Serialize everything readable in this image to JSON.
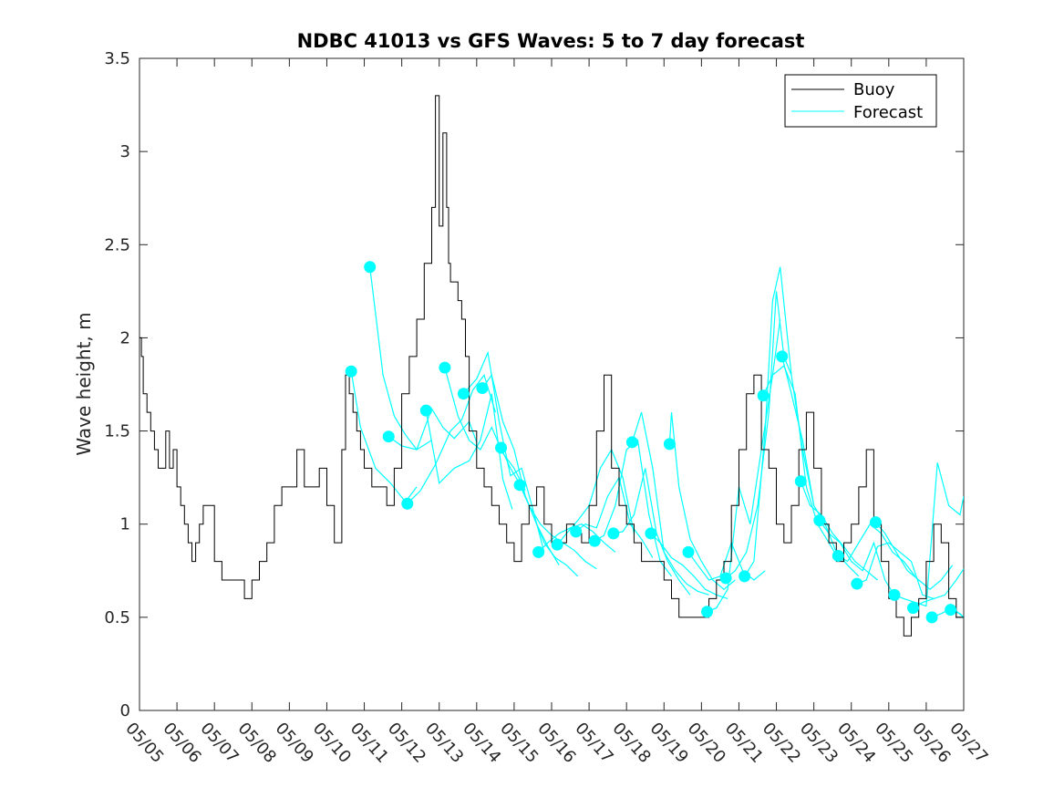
{
  "chart_data": {
    "type": "line",
    "title": "NDBC 41013 vs GFS Waves: 5 to 7 day forecast",
    "xlabel": "",
    "ylabel": "Wave height, m",
    "xlim": [
      0,
      22
    ],
    "ylim": [
      0,
      3.5
    ],
    "x_tick_values": [
      0,
      1,
      2,
      3,
      4,
      5,
      6,
      7,
      8,
      9,
      10,
      11,
      12,
      13,
      14,
      15,
      16,
      17,
      18,
      19,
      20,
      21,
      22
    ],
    "x_tick_labels": [
      "05/05",
      "05/06",
      "05/07",
      "05/08",
      "05/09",
      "05/10",
      "05/11",
      "05/12",
      "05/13",
      "05/14",
      "05/15",
      "05/16",
      "05/17",
      "05/18",
      "05/19",
      "05/20",
      "05/21",
      "05/22",
      "05/23",
      "05/24",
      "05/25",
      "05/26",
      "05/27"
    ],
    "y_tick_values": [
      0,
      0.5,
      1,
      1.5,
      2,
      2.5,
      3,
      3.5
    ],
    "y_tick_labels": [
      "0",
      "0.5",
      "1",
      "1.5",
      "2",
      "2.5",
      "3",
      "3.5"
    ],
    "grid": false,
    "legend": {
      "position": "top-right",
      "entries": [
        "Buoy",
        "Forecast"
      ]
    },
    "colors": {
      "buoy": "#000000",
      "forecast": "#00ffff"
    },
    "series": [
      {
        "name": "Buoy",
        "x": [
          0,
          0.05,
          0.1,
          0.2,
          0.3,
          0.4,
          0.5,
          0.6,
          0.7,
          0.8,
          0.9,
          1.0,
          1.1,
          1.2,
          1.3,
          1.4,
          1.5,
          1.6,
          1.7,
          1.8,
          2.0,
          2.2,
          2.4,
          2.6,
          2.8,
          3.0,
          3.2,
          3.4,
          3.6,
          3.8,
          4.0,
          4.2,
          4.4,
          4.6,
          4.8,
          5.0,
          5.2,
          5.4,
          5.5,
          5.6,
          5.7,
          5.8,
          5.9,
          6.0,
          6.2,
          6.4,
          6.6,
          6.8,
          7.0,
          7.2,
          7.4,
          7.6,
          7.8,
          7.9,
          8.0,
          8.1,
          8.2,
          8.25,
          8.3,
          8.4,
          8.5,
          8.6,
          8.7,
          8.8,
          9.0,
          9.2,
          9.4,
          9.6,
          9.8,
          10.0,
          10.2,
          10.4,
          10.6,
          10.8,
          11.0,
          11.2,
          11.4,
          11.6,
          11.8,
          12.0,
          12.2,
          12.4,
          12.6,
          12.8,
          13.0,
          13.2,
          13.4,
          13.6,
          13.8,
          14.0,
          14.2,
          14.4,
          14.6,
          14.8,
          15.0,
          15.2,
          15.4,
          15.6,
          15.8,
          16.0,
          16.2,
          16.4,
          16.6,
          16.8,
          17.0,
          17.2,
          17.4,
          17.6,
          17.8,
          18.0,
          18.2,
          18.4,
          18.6,
          18.8,
          19.0,
          19.2,
          19.4,
          19.6,
          19.8,
          20.0,
          20.2,
          20.4,
          20.6,
          20.8,
          21.0,
          21.2,
          21.4,
          21.6,
          21.8,
          22.0
        ],
        "values": [
          2.0,
          1.9,
          1.7,
          1.6,
          1.5,
          1.4,
          1.3,
          1.3,
          1.5,
          1.3,
          1.4,
          1.2,
          1.1,
          1.0,
          0.9,
          0.8,
          0.9,
          1.0,
          1.1,
          1.1,
          0.8,
          0.7,
          0.7,
          0.7,
          0.6,
          0.7,
          0.8,
          0.9,
          1.1,
          1.2,
          1.2,
          1.4,
          1.2,
          1.2,
          1.3,
          1.1,
          0.9,
          1.4,
          1.8,
          1.7,
          1.6,
          1.5,
          1.4,
          1.3,
          1.2,
          1.2,
          1.1,
          1.3,
          1.7,
          1.9,
          2.1,
          2.4,
          2.7,
          3.3,
          2.6,
          3.1,
          2.7,
          2.4,
          2.3,
          2.3,
          2.2,
          2.1,
          1.9,
          1.5,
          1.3,
          1.2,
          1.1,
          1.0,
          0.9,
          0.8,
          1.0,
          1.1,
          1.2,
          1.0,
          0.9,
          0.9,
          1.0,
          0.95,
          0.9,
          1.1,
          1.5,
          1.8,
          1.3,
          1.1,
          1.0,
          0.9,
          0.8,
          0.8,
          0.8,
          0.7,
          0.6,
          0.5,
          0.5,
          0.5,
          0.5,
          0.6,
          0.7,
          0.8,
          1.1,
          1.4,
          1.7,
          1.8,
          1.4,
          1.3,
          1.0,
          0.9,
          1.1,
          1.4,
          1.6,
          1.3,
          1.0,
          0.9,
          0.8,
          0.9,
          1.0,
          1.2,
          1.4,
          1.0,
          0.8,
          0.6,
          0.5,
          0.4,
          0.5,
          0.6,
          0.8,
          1.0,
          0.9,
          0.6,
          0.5,
          0.5
        ]
      },
      {
        "name": "Forecast",
        "runs": [
          {
            "x": [
              5.65,
              5.9,
              6.3,
              6.7,
              7.1,
              7.4
            ],
            "y": [
              1.82,
              1.52,
              1.3,
              1.22,
              1.12,
              1.2
            ]
          },
          {
            "x": [
              6.15,
              6.5,
              6.8,
              7.1,
              7.4,
              7.8
            ],
            "y": [
              2.38,
              1.8,
              1.58,
              1.48,
              1.4,
              1.45
            ]
          },
          {
            "x": [
              6.65,
              7.0,
              7.4,
              7.8,
              8.1,
              8.4,
              8.8,
              9.0
            ],
            "y": [
              1.47,
              1.42,
              1.4,
              1.62,
              1.52,
              1.46,
              1.55,
              1.44
            ]
          },
          {
            "x": [
              7.15,
              7.5,
              7.9,
              8.3,
              8.6,
              8.9,
              9.2,
              9.5
            ],
            "y": [
              1.11,
              1.18,
              1.32,
              1.5,
              1.56,
              1.72,
              1.8,
              1.6
            ]
          },
          {
            "x": [
              7.65,
              8.0,
              8.4,
              8.8,
              9.1,
              9.4,
              9.7,
              9.95
            ],
            "y": [
              1.61,
              1.22,
              1.3,
              1.34,
              1.45,
              1.7,
              1.24,
              1.08
            ]
          },
          {
            "x": [
              8.15,
              8.5,
              8.8,
              9.1,
              9.4,
              9.7,
              10.0,
              10.3
            ],
            "y": [
              1.84,
              1.58,
              1.45,
              1.4,
              1.52,
              1.38,
              1.3,
              1.18
            ]
          },
          {
            "x": [
              8.65,
              9.0,
              9.3,
              9.6,
              9.9,
              10.2,
              10.5,
              10.8
            ],
            "y": [
              1.7,
              1.78,
              1.92,
              1.55,
              1.26,
              1.3,
              1.08,
              0.85
            ]
          },
          {
            "x": [
              9.15,
              9.4,
              9.7,
              10.0,
              10.3,
              10.6,
              10.9,
              11.2
            ],
            "y": [
              1.73,
              1.8,
              1.55,
              1.4,
              1.15,
              1.0,
              0.88,
              0.78
            ]
          },
          {
            "x": [
              9.65,
              9.9,
              10.2,
              10.5,
              10.8,
              11.1,
              11.4,
              11.7
            ],
            "y": [
              1.41,
              1.3,
              1.2,
              1.05,
              0.9,
              0.82,
              0.78,
              0.72
            ]
          },
          {
            "x": [
              10.15,
              10.4,
              10.7,
              11.0,
              11.3,
              11.6,
              11.9,
              12.2
            ],
            "y": [
              1.21,
              1.1,
              1.0,
              0.94,
              0.9,
              0.86,
              0.8,
              0.76
            ]
          },
          {
            "x": [
              10.65,
              10.9,
              11.2,
              11.5,
              11.8,
              12.1,
              12.4,
              12.7
            ],
            "y": [
              0.85,
              0.9,
              0.95,
              0.98,
              1.0,
              0.96,
              0.9,
              0.85
            ]
          },
          {
            "x": [
              11.15,
              11.4,
              11.7,
              12.0,
              12.3,
              12.6,
              12.9,
              13.2
            ],
            "y": [
              0.89,
              0.95,
              1.02,
              1.1,
              1.3,
              1.4,
              1.25,
              0.95
            ]
          },
          {
            "x": [
              11.65,
              11.9,
              12.2,
              12.5,
              12.8,
              13.1,
              13.4,
              13.7
            ],
            "y": [
              0.96,
              1.0,
              0.98,
              1.15,
              1.25,
              1.0,
              0.92,
              0.82
            ]
          },
          {
            "x": [
              12.15,
              12.4,
              12.7,
              13.0,
              13.3,
              13.6,
              13.9,
              14.2
            ],
            "y": [
              0.91,
              0.94,
              1.1,
              1.4,
              1.45,
              1.05,
              0.8,
              0.72
            ]
          },
          {
            "x": [
              12.65,
              12.9,
              13.2,
              13.5,
              13.8,
              14.1,
              14.4,
              14.7
            ],
            "y": [
              0.95,
              0.96,
              1.05,
              1.3,
              0.95,
              0.8,
              0.7,
              0.62
            ]
          },
          {
            "x": [
              13.15,
              13.4,
              13.7,
              14.0,
              14.3,
              14.6,
              14.9,
              15.2
            ],
            "y": [
              1.44,
              1.6,
              1.3,
              0.85,
              0.75,
              0.68,
              0.64,
              0.62
            ]
          },
          {
            "x": [
              13.65,
              13.9,
              14.2,
              14.5,
              14.8,
              15.1,
              15.4,
              15.7
            ],
            "y": [
              0.95,
              0.9,
              0.82,
              0.78,
              0.72,
              0.65,
              0.62,
              0.6
            ]
          },
          {
            "x": [
              14.15,
              14.2,
              14.4,
              14.7,
              15.0,
              15.3,
              15.6,
              15.9
            ],
            "y": [
              1.43,
              1.6,
              1.2,
              0.92,
              0.8,
              0.7,
              0.65,
              0.7
            ]
          },
          {
            "x": [
              14.65,
              14.9,
              15.2,
              15.5,
              15.8,
              16.1,
              16.4,
              16.7
            ],
            "y": [
              0.85,
              0.78,
              0.7,
              0.72,
              0.9,
              0.75,
              0.7,
              0.75
            ]
          },
          {
            "x": [
              15.15,
              15.4,
              15.7,
              16.0,
              16.3,
              16.6,
              16.9,
              17.1
            ],
            "y": [
              0.53,
              0.55,
              0.65,
              1.2,
              1.0,
              1.4,
              1.8,
              2.1
            ]
          },
          {
            "x": [
              15.65,
              15.9,
              16.2,
              16.5,
              16.8,
              17.0,
              17.2,
              17.4
            ],
            "y": [
              0.71,
              0.75,
              0.85,
              1.1,
              1.6,
              2.25,
              1.9,
              1.8
            ]
          },
          {
            "x": [
              16.15,
              16.4,
              16.7,
              16.9,
              17.1,
              17.4,
              17.7,
              18.0
            ],
            "y": [
              0.72,
              0.8,
              1.5,
              2.2,
              2.38,
              1.8,
              1.4,
              1.1
            ]
          },
          {
            "x": [
              16.65,
              16.9,
              17.2,
              17.5,
              17.8,
              18.1,
              18.4,
              18.7
            ],
            "y": [
              1.69,
              1.8,
              1.85,
              1.7,
              1.2,
              1.0,
              0.9,
              0.8
            ]
          },
          {
            "x": [
              17.15,
              17.4,
              17.7,
              18.0,
              18.3,
              18.6,
              18.9,
              19.2
            ],
            "y": [
              1.9,
              1.7,
              1.45,
              1.1,
              1.0,
              0.85,
              0.78,
              0.72
            ]
          },
          {
            "x": [
              17.65,
              17.9,
              18.2,
              18.5,
              18.8,
              19.1,
              19.4,
              19.7
            ],
            "y": [
              1.23,
              1.1,
              1.05,
              0.95,
              0.88,
              0.8,
              0.75,
              0.7
            ]
          },
          {
            "x": [
              18.15,
              18.4,
              18.7,
              19.0,
              19.3,
              19.6,
              19.9,
              20.2
            ],
            "y": [
              1.02,
              0.95,
              0.9,
              0.8,
              0.75,
              0.9,
              0.7,
              0.6
            ]
          },
          {
            "x": [
              18.65,
              18.9,
              19.2,
              19.5,
              19.8,
              20.1,
              20.4,
              20.7
            ],
            "y": [
              0.83,
              0.8,
              0.9,
              1.0,
              0.95,
              0.85,
              0.8,
              0.72
            ]
          },
          {
            "x": [
              19.15,
              19.4,
              19.7,
              20.0,
              20.3,
              20.6,
              20.9,
              21.2
            ],
            "y": [
              0.68,
              0.7,
              0.88,
              0.9,
              0.85,
              0.8,
              0.62,
              0.6
            ]
          },
          {
            "x": [
              19.65,
              19.9,
              20.2,
              20.5,
              20.8,
              21.1,
              21.4,
              21.7
            ],
            "y": [
              1.01,
              0.95,
              0.85,
              0.75,
              0.7,
              0.65,
              0.7,
              0.78
            ]
          },
          {
            "x": [
              20.15,
              20.4,
              20.7,
              21.0,
              21.3,
              21.6,
              21.9,
              22.0
            ],
            "y": [
              0.62,
              0.6,
              0.58,
              0.56,
              1.33,
              1.1,
              1.05,
              1.15
            ]
          },
          {
            "x": [
              20.65,
              20.9,
              21.2,
              21.5,
              21.8,
              22.0
            ],
            "y": [
              0.55,
              0.58,
              0.6,
              0.62,
              0.7,
              0.76
            ]
          },
          {
            "x": [
              21.15,
              21.4,
              21.7,
              22.0
            ],
            "y": [
              0.5,
              0.52,
              0.55,
              0.5
            ]
          },
          {
            "x": [
              21.65,
              21.9,
              22.0
            ],
            "y": [
              0.54,
              0.52,
              0.5
            ]
          }
        ]
      }
    ]
  }
}
